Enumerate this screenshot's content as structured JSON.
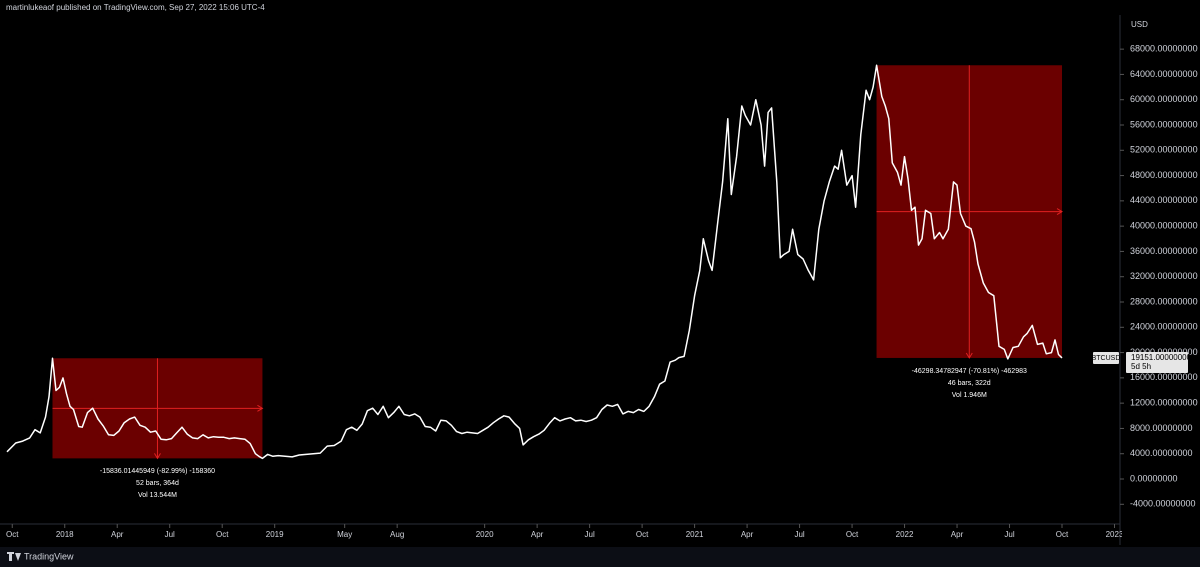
{
  "header": {
    "byline": "martinlukeaof published on TradingView.com, Sep 27, 2022 15:06 UTC-4"
  },
  "footer": {
    "brand": "TradingView"
  },
  "chart_data": {
    "type": "line",
    "y_unit": "USD",
    "xlim": [
      -0.7,
      63.2
    ],
    "ylim": [
      -6800,
      73400
    ],
    "xticks": [
      {
        "value": 0,
        "label": "Oct"
      },
      {
        "value": 3,
        "label": "2018"
      },
      {
        "value": 6,
        "label": "Apr"
      },
      {
        "value": 9,
        "label": "Jul"
      },
      {
        "value": 12,
        "label": "Oct"
      },
      {
        "value": 15,
        "label": "2019"
      },
      {
        "value": 19,
        "label": "May"
      },
      {
        "value": 22,
        "label": "Aug"
      },
      {
        "value": 27,
        "label": "2020"
      },
      {
        "value": 30,
        "label": "Apr"
      },
      {
        "value": 33,
        "label": "Jul"
      },
      {
        "value": 36,
        "label": "Oct"
      },
      {
        "value": 39,
        "label": "2021"
      },
      {
        "value": 42,
        "label": "Apr"
      },
      {
        "value": 45,
        "label": "Jul"
      },
      {
        "value": 48,
        "label": "Oct"
      },
      {
        "value": 51,
        "label": "2022"
      },
      {
        "value": 54,
        "label": "Apr"
      },
      {
        "value": 57,
        "label": "Jul"
      },
      {
        "value": 60,
        "label": "Oct"
      },
      {
        "value": 63,
        "label": "2023"
      }
    ],
    "yticks": [
      {
        "value": -4000,
        "label": "-4000.00000000"
      },
      {
        "value": 0,
        "label": "0.00000000"
      },
      {
        "value": 4000,
        "label": "4000.00000000"
      },
      {
        "value": 8000,
        "label": "8000.00000000"
      },
      {
        "value": 12000,
        "label": "12000.00000000"
      },
      {
        "value": 16000,
        "label": "16000.00000000"
      },
      {
        "value": 20000,
        "label": "20000.00000000"
      },
      {
        "value": 24000,
        "label": "24000.00000000"
      },
      {
        "value": 28000,
        "label": "28000.00000000"
      },
      {
        "value": 32000,
        "label": "32000.00000000"
      },
      {
        "value": 36000,
        "label": "36000.00000000"
      },
      {
        "value": 40000,
        "label": "40000.00000000"
      },
      {
        "value": 44000,
        "label": "44000.00000000"
      },
      {
        "value": 48000,
        "label": "48000.00000000"
      },
      {
        "value": 52000,
        "label": "52000.00000000"
      },
      {
        "value": 56000,
        "label": "56000.00000000"
      },
      {
        "value": 60000,
        "label": "60000.00000000"
      },
      {
        "value": 64000,
        "label": "64000.00000000"
      },
      {
        "value": 68000,
        "label": "68000.00000000"
      }
    ],
    "series": [
      {
        "name": "BTCUSD",
        "color": "#ffffff",
        "last_value_label": "19151.00000000",
        "countdown": "5d 5h",
        "x": [
          -0.3,
          0.2,
          0.6,
          1.0,
          1.3,
          1.6,
          1.9,
          2.1,
          2.3,
          2.5,
          2.7,
          2.9,
          3.1,
          3.3,
          3.5,
          3.8,
          4.0,
          4.3,
          4.6,
          4.9,
          5.2,
          5.5,
          5.8,
          6.1,
          6.4,
          6.7,
          7.0,
          7.3,
          7.6,
          7.9,
          8.2,
          8.5,
          8.8,
          9.1,
          9.4,
          9.7,
          10.0,
          10.3,
          10.6,
          10.9,
          11.2,
          11.5,
          11.8,
          12.1,
          12.4,
          12.7,
          13.0,
          13.3,
          13.6,
          13.9,
          14.1,
          14.3,
          14.6,
          14.9,
          15.2,
          15.6,
          16.0,
          16.4,
          16.8,
          17.2,
          17.6,
          18.0,
          18.4,
          18.8,
          19.1,
          19.4,
          19.7,
          20.0,
          20.3,
          20.6,
          20.9,
          21.2,
          21.5,
          21.8,
          22.1,
          22.4,
          22.7,
          23.0,
          23.3,
          23.6,
          23.9,
          24.2,
          24.5,
          24.8,
          25.1,
          25.4,
          25.7,
          26.0,
          26.3,
          26.6,
          26.9,
          27.2,
          27.5,
          27.8,
          28.1,
          28.4,
          28.7,
          29.0,
          29.2,
          29.5,
          29.8,
          30.1,
          30.4,
          30.7,
          31.0,
          31.3,
          31.6,
          31.9,
          32.2,
          32.5,
          32.8,
          33.1,
          33.4,
          33.7,
          34.0,
          34.3,
          34.6,
          34.9,
          35.2,
          35.5,
          35.8,
          36.1,
          36.4,
          36.7,
          37.0,
          37.3,
          37.6,
          37.9,
          38.1,
          38.4,
          38.7,
          39.0,
          39.3,
          39.5,
          39.8,
          40.0,
          40.3,
          40.6,
          40.9,
          41.1,
          41.4,
          41.7,
          41.9,
          42.2,
          42.5,
          42.8,
          43.0,
          43.2,
          43.4,
          43.7,
          43.9,
          44.1,
          44.4,
          44.6,
          44.9,
          45.2,
          45.5,
          45.8,
          46.1,
          46.4,
          46.7,
          47.0,
          47.2,
          47.4,
          47.7,
          48.0,
          48.2,
          48.5,
          48.8,
          49.0,
          49.2,
          49.4,
          49.7,
          49.9,
          50.1,
          50.3,
          50.6,
          50.8,
          51.0,
          51.2,
          51.4,
          51.6,
          51.8,
          52.0,
          52.2,
          52.5,
          52.7,
          53.0,
          53.2,
          53.5,
          53.8,
          54.0,
          54.2,
          54.5,
          54.8,
          55.0,
          55.2,
          55.5,
          55.8,
          56.1,
          56.4,
          56.7,
          56.9,
          57.2,
          57.5,
          57.8,
          58.0,
          58.3,
          58.6,
          58.9,
          59.1,
          59.4,
          59.6,
          59.8,
          60.0
        ],
        "values": [
          4300,
          5700,
          6000,
          6500,
          7800,
          7300,
          9800,
          13000,
          19100,
          14000,
          14500,
          16000,
          13500,
          11500,
          11000,
          8300,
          8200,
          10500,
          11200,
          9500,
          8400,
          7000,
          6900,
          7600,
          8900,
          9500,
          9800,
          8500,
          8200,
          7400,
          7600,
          6300,
          6200,
          6400,
          7300,
          8200,
          7100,
          6500,
          6400,
          7000,
          6500,
          6700,
          6600,
          6600,
          6400,
          6500,
          6400,
          6300,
          5600,
          4000,
          3600,
          3264,
          3900,
          3600,
          3700,
          3600,
          3500,
          3800,
          3900,
          4000,
          4100,
          5200,
          5300,
          6000,
          7800,
          8200,
          7700,
          8700,
          10800,
          11200,
          10200,
          11500,
          9700,
          10500,
          11500,
          10200,
          10000,
          10300,
          9800,
          8300,
          8200,
          7600,
          9300,
          9200,
          8500,
          7500,
          7200,
          7400,
          7300,
          7200,
          7700,
          8200,
          8900,
          9500,
          10000,
          9800,
          8800,
          8000,
          5400,
          6200,
          6700,
          7100,
          7700,
          8800,
          9700,
          9200,
          9500,
          9700,
          9200,
          9300,
          9100,
          9300,
          9700,
          11000,
          11700,
          11500,
          11800,
          10300,
          10700,
          10500,
          11000,
          10700,
          11500,
          13000,
          15000,
          15500,
          18500,
          18800,
          19200,
          19400,
          23500,
          29000,
          33000,
          38000,
          34500,
          33000,
          40000,
          47000,
          57000,
          45000,
          51000,
          59000,
          57500,
          56000,
          60000,
          56000,
          49500,
          58000,
          58700,
          47000,
          35000,
          35500,
          36000,
          39500,
          35500,
          34800,
          33000,
          31500,
          39500,
          44000,
          47000,
          49500,
          49000,
          52000,
          46500,
          48000,
          43000,
          54500,
          61500,
          60000,
          62000,
          65449,
          60500,
          59000,
          57000,
          50000,
          48500,
          46500,
          51000,
          47500,
          42500,
          43000,
          37000,
          38000,
          42500,
          42000,
          38000,
          39000,
          38000,
          39500,
          47000,
          46500,
          42000,
          40000,
          39600,
          37500,
          34000,
          31000,
          29500,
          29000,
          21000,
          20500,
          19000,
          20800,
          21000,
          22500,
          23000,
          24300,
          21300,
          21500,
          19800,
          20000,
          22000,
          19700,
          19151
        ]
      }
    ],
    "measures": [
      {
        "x_start": 2.3,
        "x_end": 14.3,
        "start_value": 19100,
        "end_value": 3264,
        "change_label": "-15836.01445949 (-82.99%) -158360",
        "bars_label": "52 bars, 364d",
        "vol_label": "Vol 13.544M"
      },
      {
        "x_start": 49.4,
        "x_end": 60.0,
        "start_value": 65449,
        "end_value": 19151,
        "change_label": "-46298.34782947 (-70.81%) -462983",
        "bars_label": "46 bars, 322d",
        "vol_label": "Vol 1.946M"
      }
    ]
  }
}
